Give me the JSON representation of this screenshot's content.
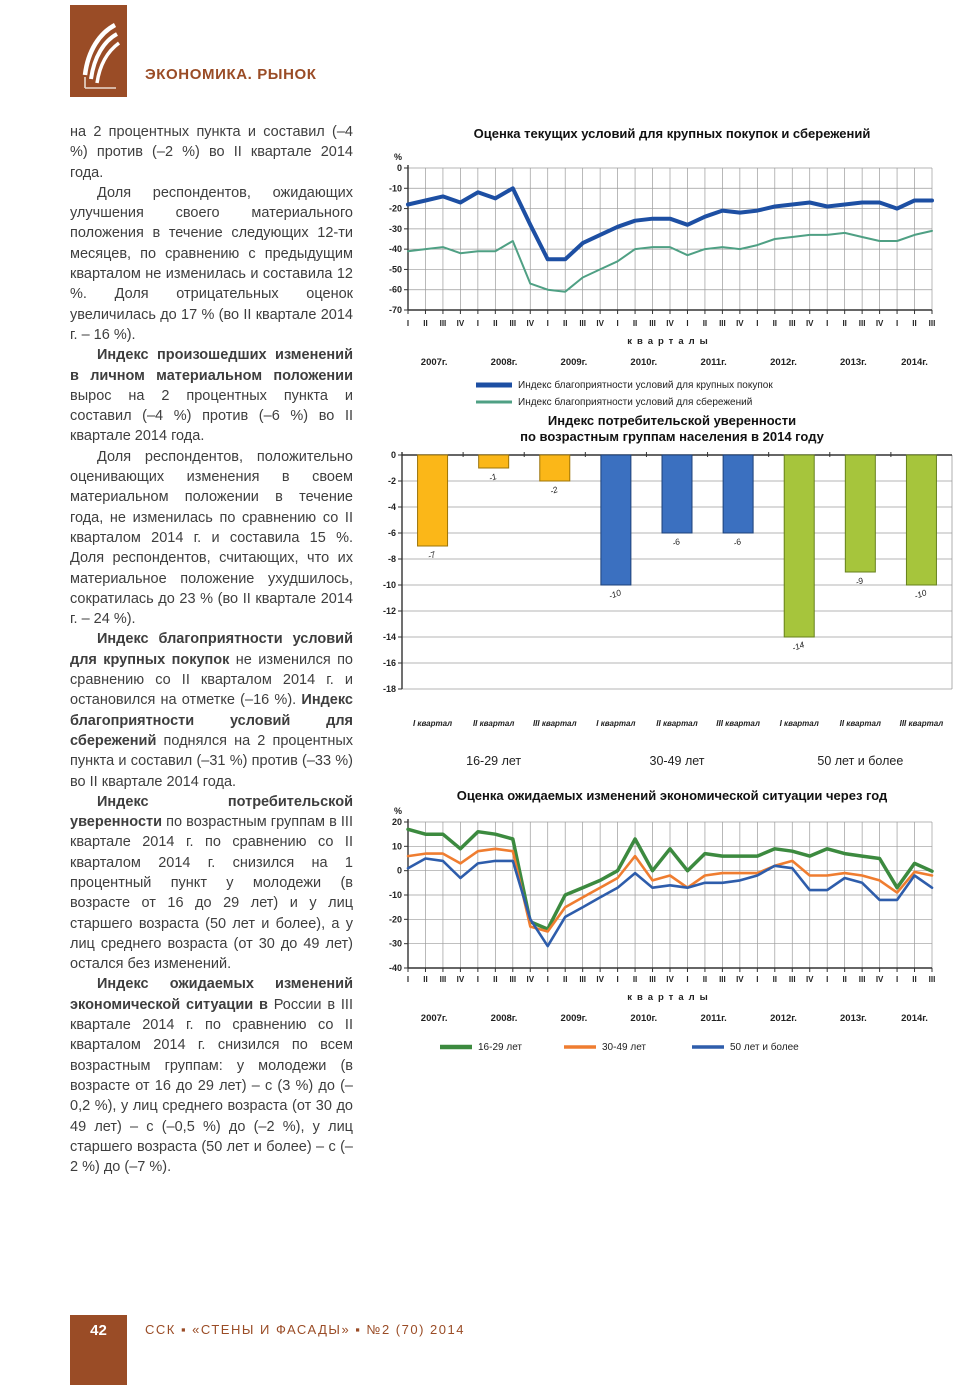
{
  "header": {
    "section_title": "ЭКОНОМИКА. РЫНОК"
  },
  "article": {
    "paragraphs": [
      {
        "indent": false,
        "segments": [
          {
            "bold": false,
            "text": "на 2 процентных пункта и составил (–4 %) против (–2 %) во II квартале 2014 года."
          }
        ]
      },
      {
        "indent": true,
        "segments": [
          {
            "bold": false,
            "text": "Доля респондентов, ожидающих улучшения своего материального положения в течение следующих 12-ти месяцев, по сравнению с предыдущим кварталом не изменилась и составила 12 %. Доля отрицательных оценок увеличилась до 17 % (во II квартале 2014 г. – 16 %)."
          }
        ]
      },
      {
        "indent": true,
        "segments": [
          {
            "bold": true,
            "text": "Индекс произошедших изменений в личном материальном положении"
          },
          {
            "bold": false,
            "text": " вырос на 2 процентных пункта и составил (–4 %) против (–6 %) во II квартале 2014 года."
          }
        ]
      },
      {
        "indent": true,
        "segments": [
          {
            "bold": false,
            "text": "Доля респондентов, положительно оценивающих изменения в своем материальном положении в течение года, не изменилась по сравнению со II кварталом 2014 г. и составила 15 %. Доля респондентов, считающих, что их материальное положение ухудшилось, сократилась до 23 % (во II квартале 2014 г. – 24 %)."
          }
        ]
      },
      {
        "indent": true,
        "segments": [
          {
            "bold": true,
            "text": "Индекс благоприятности условий для крупных покупок"
          },
          {
            "bold": false,
            "text": " не изменился по сравнению со II кварталом 2014 г. и остановился на отметке (–16 %). "
          },
          {
            "bold": true,
            "text": "Индекс благоприятности условий для сбережений"
          },
          {
            "bold": false,
            "text": " поднялся на 2 процентных пункта и составил (–31 %) против (–33 %) во II квартале 2014 года."
          }
        ]
      },
      {
        "indent": true,
        "segments": [
          {
            "bold": true,
            "text": "Индекс потребительской уверенности"
          },
          {
            "bold": false,
            "text": " по возрастным группам в III квартале 2014 г. по сравнению со II кварталом 2014 г. снизился на 1 процентный пункт у молодежи (в возрасте от 16 до 29 лет) и у лиц старшего возраста (50 лет и более), а у лиц среднего возраста (от 30 до 49 лет) остался без изменений."
          }
        ]
      },
      {
        "indent": true,
        "segments": [
          {
            "bold": true,
            "text": "Индекс ожидаемых изменений экономической ситуации в"
          },
          {
            "bold": false,
            "text": " России в III квартале 2014 г. по сравнению со II кварталом 2014 г. снизился по всем возрастным группам: у молодежи (в возрасте от 16 до 29 лет) – с (3 %) до (–0,2 %), у лиц среднего возраста (от 30 до 49 лет) – с (–0,5 %) до (–2 %), у лиц старшего возраста (50 лет и более) – с (–2 %) до (–7 %)."
          }
        ]
      }
    ]
  },
  "chart_data": [
    {
      "type": "line",
      "title": "Оценка текущих условий для крупных покупок и сбережений",
      "ylabel": "%",
      "ylim": [
        -70,
        0
      ],
      "yticks": [
        0,
        -10,
        -20,
        -30,
        -40,
        -50,
        -60,
        -70
      ],
      "grid": true,
      "x_axis_label": "кварталы",
      "x_quarters": [
        "I",
        "II",
        "III",
        "IV",
        "I",
        "II",
        "III",
        "IV",
        "I",
        "II",
        "III",
        "IV",
        "I",
        "II",
        "III",
        "IV",
        "I",
        "II",
        "III",
        "IV",
        "I",
        "II",
        "III",
        "IV",
        "I",
        "II",
        "III",
        "IV",
        "I",
        "II",
        "III"
      ],
      "years": [
        "2007г.",
        "2008г.",
        "2009г.",
        "2010г.",
        "2011г.",
        "2012г.",
        "2013г.",
        "2014г."
      ],
      "legend_position": "bottom-stacked",
      "series": [
        {
          "name": "Индекс благоприятности условий для крупных покупок",
          "color": "#1d4fa3",
          "width": 4,
          "values": [
            -18,
            -16,
            -14,
            -17,
            -12,
            -15,
            -10,
            -28,
            -45,
            -45,
            -37,
            -33,
            -29,
            -26,
            -25,
            -25,
            -28,
            -24,
            -21,
            -22,
            -21,
            -19,
            -18,
            -17,
            -19,
            -18,
            -17,
            -17,
            -20,
            -16,
            -16
          ]
        },
        {
          "name": "Индекс благоприятности условий для сбережений",
          "color": "#4fa084",
          "width": 2,
          "values": [
            -41,
            -40,
            -39,
            -42,
            -41,
            -41,
            -36,
            -57,
            -60,
            -61,
            -54,
            -50,
            -46,
            -40,
            -39,
            -39,
            -43,
            -40,
            -39,
            -40,
            -38,
            -35,
            -34,
            -33,
            -33,
            -32,
            -34,
            -36,
            -36,
            -33,
            -31
          ]
        }
      ]
    },
    {
      "type": "bar",
      "title": "Индекс потребительской уверенности по возрастным группам населения в 2014 году",
      "title_lines": [
        "Индекс потребительской уверенности",
        "по возрастным группам населения в 2014 году"
      ],
      "ylim": [
        -18,
        0
      ],
      "yticks": [
        0,
        -2,
        -4,
        -6,
        -8,
        -10,
        -12,
        -14,
        -16,
        -18
      ],
      "categories": [
        "I квартал",
        "II квартал",
        "III квартал"
      ],
      "groups": [
        {
          "name": "16-29 лет",
          "color": "#fbb718",
          "border": "#9c7408",
          "values": [
            -7,
            -1,
            -2
          ]
        },
        {
          "name": "30-49 лет",
          "color": "#3b70c0",
          "border": "#1d4178",
          "values": [
            -10,
            -6,
            -6
          ]
        },
        {
          "name": "50 лет и более",
          "color": "#a6c53c",
          "border": "#66801c",
          "values": [
            -14,
            -9,
            -10
          ]
        }
      ]
    },
    {
      "type": "line",
      "title": "Оценка ожидаемых изменений экономической ситуации через год",
      "ylabel": "%",
      "ylim": [
        -40,
        20
      ],
      "yticks": [
        20,
        10,
        0,
        -10,
        -20,
        -30,
        -40
      ],
      "grid": true,
      "x_axis_label": "кварталы",
      "x_quarters": [
        "I",
        "II",
        "III",
        "IV",
        "I",
        "II",
        "III",
        "IV",
        "I",
        "II",
        "III",
        "IV",
        "I",
        "II",
        "III",
        "IV",
        "I",
        "II",
        "III",
        "IV",
        "I",
        "II",
        "III",
        "IV",
        "I",
        "II",
        "III",
        "IV",
        "I",
        "II",
        "III"
      ],
      "years": [
        "2007г.",
        "2008г.",
        "2009г.",
        "2010г.",
        "2011г.",
        "2012г.",
        "2013г.",
        "2014г."
      ],
      "legend_position": "bottom-row",
      "series": [
        {
          "name": "16-29 лет",
          "color": "#3c8a3f",
          "width": 3.5,
          "values": [
            17,
            15,
            15,
            9,
            16,
            15,
            13,
            -21,
            -24,
            -10,
            -7,
            -4,
            0,
            13,
            0,
            9,
            0,
            7,
            6,
            6,
            6,
            9,
            8,
            6,
            9,
            7,
            6,
            5,
            -7,
            3,
            -0.2
          ]
        },
        {
          "name": "30-49 лет",
          "color": "#ef7d30",
          "width": 2.6,
          "values": [
            6,
            7,
            7,
            3,
            8,
            9,
            8,
            -23,
            -25,
            -15,
            -11,
            -7,
            -3,
            6,
            -4,
            -2,
            -7,
            -2,
            -1,
            -1,
            -1,
            2,
            4,
            -2,
            -2,
            -1,
            -2,
            -4,
            -9,
            -0.5,
            -2
          ]
        },
        {
          "name": "50 лет  и более",
          "color": "#2e5dab",
          "width": 2.6,
          "values": [
            1,
            5,
            4,
            -3,
            3,
            4,
            4,
            -20,
            -31,
            -19,
            -15,
            -11,
            -7,
            -1,
            -7,
            -6,
            -7,
            -5,
            -5,
            -4,
            -2,
            2,
            1,
            -8,
            -8,
            -3,
            -5,
            -12,
            -12,
            -2,
            -7
          ]
        }
      ]
    }
  ],
  "footer": {
    "page_number": "42",
    "journal_line": "ССК ▪ «СТЕНЫ И ФАСАДЫ» ▪ №2 (70) 2014"
  },
  "colors": {
    "accent_brown": "#9a4c26",
    "body_text": "#3e3e3e",
    "grid_gray": "#9b9b9b"
  }
}
